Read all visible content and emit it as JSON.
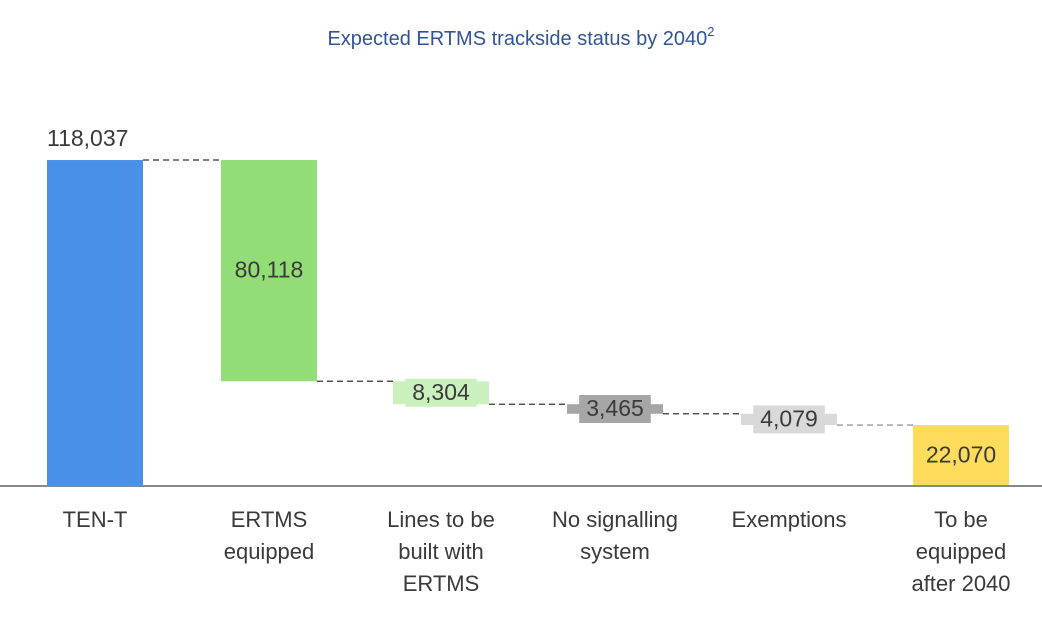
{
  "chart_data": {
    "type": "waterfall",
    "title": "Expected ERTMS trackside status by 2040",
    "title_note": "2",
    "categories": [
      [
        "TEN-T"
      ],
      [
        "ERTMS",
        "equipped"
      ],
      [
        "Lines to be",
        "built with",
        "ERTMS"
      ],
      [
        "No signalling",
        "system"
      ],
      [
        "Exemptions"
      ],
      [
        "To be",
        "equipped",
        "after 2040"
      ]
    ],
    "values": [
      118037,
      80118,
      8304,
      3465,
      4079,
      22070
    ],
    "value_labels": [
      "118,037",
      "80,118",
      "8,304",
      "3,465",
      "4,079",
      "22,070"
    ],
    "kinds": [
      "total",
      "decrease",
      "decrease",
      "decrease",
      "decrease",
      "total"
    ],
    "colors": [
      "#4a90e8",
      "#92dd76",
      "#c9f0bd",
      "#a6a6a6",
      "#d9d9d9",
      "#fddc5c"
    ],
    "ylim": [
      0,
      120000
    ]
  }
}
